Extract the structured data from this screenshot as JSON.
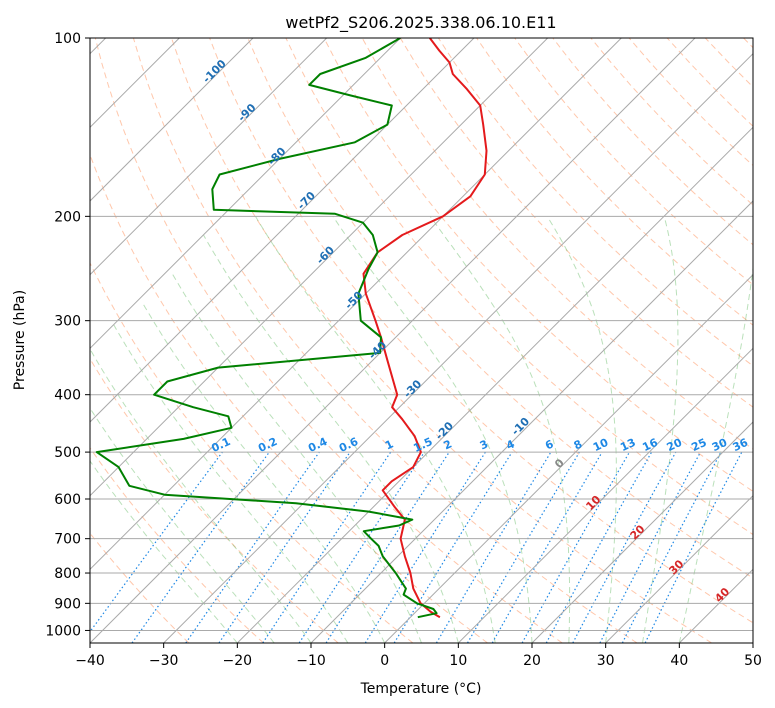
{
  "chart_data": {
    "type": "line",
    "title": "wetPf2_S206.2025.338.06.10.E11",
    "xlabel": "Temperature (°C)",
    "ylabel": "Pressure (hPa)",
    "xlim": [
      -40,
      50
    ],
    "ylim": [
      1050,
      100
    ],
    "y_log_scale": true,
    "skew_deg_per_axis_fraction": 45,
    "grid": true,
    "x_ticks": [
      "−40",
      "−30",
      "−20",
      "−10",
      "0",
      "10",
      "20",
      "30",
      "40",
      "50"
    ],
    "y_ticks": [
      "1000",
      "900",
      "800",
      "700",
      "600",
      "500",
      "400",
      "300",
      "200",
      "100"
    ],
    "series": [
      {
        "color": "#e41a1c",
        "style": "temperature",
        "points": [
          {
            "p": 950,
            "t": 4
          },
          {
            "p": 930,
            "t": 2
          },
          {
            "p": 900,
            "t": -0.5
          },
          {
            "p": 850,
            "t": -3.5
          },
          {
            "p": 800,
            "t": -6
          },
          {
            "p": 750,
            "t": -9
          },
          {
            "p": 700,
            "t": -12
          },
          {
            "p": 650,
            "t": -14
          },
          {
            "p": 620,
            "t": -17
          },
          {
            "p": 580,
            "t": -21
          },
          {
            "p": 560,
            "t": -21
          },
          {
            "p": 530,
            "t": -20
          },
          {
            "p": 500,
            "t": -21
          },
          {
            "p": 470,
            "t": -24
          },
          {
            "p": 440,
            "t": -28
          },
          {
            "p": 420,
            "t": -31
          },
          {
            "p": 400,
            "t": -32
          },
          {
            "p": 350,
            "t": -38
          },
          {
            "p": 320,
            "t": -42
          },
          {
            "p": 300,
            "t": -45
          },
          {
            "p": 270,
            "t": -50
          },
          {
            "p": 250,
            "t": -53
          },
          {
            "p": 230,
            "t": -54
          },
          {
            "p": 215,
            "t": -53
          },
          {
            "p": 200,
            "t": -50
          },
          {
            "p": 185,
            "t": -49
          },
          {
            "p": 170,
            "t": -50
          },
          {
            "p": 155,
            "t": -53
          },
          {
            "p": 140,
            "t": -57
          },
          {
            "p": 130,
            "t": -60
          },
          {
            "p": 122,
            "t": -64
          },
          {
            "p": 115,
            "t": -68
          },
          {
            "p": 110,
            "t": -70
          },
          {
            "p": 105,
            "t": -73
          },
          {
            "p": 100,
            "t": -76
          }
        ]
      },
      {
        "color": "#008000",
        "style": "dewpoint",
        "points": [
          {
            "p": 950,
            "t": 1
          },
          {
            "p": 935,
            "t": 3
          },
          {
            "p": 920,
            "t": 2
          },
          {
            "p": 900,
            "t": -1
          },
          {
            "p": 870,
            "t": -4
          },
          {
            "p": 850,
            "t": -4.5
          },
          {
            "p": 800,
            "t": -8
          },
          {
            "p": 750,
            "t": -12
          },
          {
            "p": 720,
            "t": -14
          },
          {
            "p": 700,
            "t": -16
          },
          {
            "p": 680,
            "t": -18
          },
          {
            "p": 665,
            "t": -14
          },
          {
            "p": 650,
            "t": -13
          },
          {
            "p": 630,
            "t": -20
          },
          {
            "p": 610,
            "t": -31
          },
          {
            "p": 590,
            "t": -50
          },
          {
            "p": 570,
            "t": -56
          },
          {
            "p": 530,
            "t": -60
          },
          {
            "p": 500,
            "t": -65
          },
          {
            "p": 475,
            "t": -55
          },
          {
            "p": 455,
            "t": -50
          },
          {
            "p": 435,
            "t": -52
          },
          {
            "p": 420,
            "t": -58
          },
          {
            "p": 400,
            "t": -65
          },
          {
            "p": 380,
            "t": -65
          },
          {
            "p": 360,
            "t": -60
          },
          {
            "p": 340,
            "t": -40
          },
          {
            "p": 320,
            "t": -42
          },
          {
            "p": 300,
            "t": -47
          },
          {
            "p": 270,
            "t": -51
          },
          {
            "p": 245,
            "t": -53
          },
          {
            "p": 230,
            "t": -54
          },
          {
            "p": 215,
            "t": -57
          },
          {
            "p": 205,
            "t": -60
          },
          {
            "p": 198,
            "t": -65
          },
          {
            "p": 195,
            "t": -82
          },
          {
            "p": 180,
            "t": -85
          },
          {
            "p": 170,
            "t": -86
          },
          {
            "p": 160,
            "t": -80
          },
          {
            "p": 150,
            "t": -72
          },
          {
            "p": 140,
            "t": -70
          },
          {
            "p": 130,
            "t": -72
          },
          {
            "p": 125,
            "t": -79
          },
          {
            "p": 120,
            "t": -86
          },
          {
            "p": 115,
            "t": -86
          },
          {
            "p": 108,
            "t": -82
          },
          {
            "p": 100,
            "t": -80
          }
        ]
      }
    ],
    "isotherm_labels": [
      {
        "text": "-100",
        "t": -100
      },
      {
        "text": "-90",
        "t": -90
      },
      {
        "text": "-80",
        "t": -80
      },
      {
        "text": "-70",
        "t": -70
      },
      {
        "text": "-60",
        "t": -60
      },
      {
        "text": "-50",
        "t": -50
      },
      {
        "text": "-40",
        "t": -40
      },
      {
        "text": "-30",
        "t": -30
      },
      {
        "text": "-20",
        "t": -20
      },
      {
        "text": "-10",
        "t": -10
      },
      {
        "text": "0",
        "t": 0
      },
      {
        "text": "10",
        "t": 10
      },
      {
        "text": "20",
        "t": 20
      },
      {
        "text": "30",
        "t": 30
      },
      {
        "text": "40",
        "t": 40
      }
    ],
    "mixing_ratio_labels": [
      "0.1",
      "0.2",
      "0.4",
      "0.6",
      "1",
      "1.5",
      "2",
      "3",
      "4",
      "6",
      "8",
      "10",
      "13",
      "16",
      "20",
      "25",
      "30",
      "36"
    ],
    "mixing_ratio_label_pressure": 500,
    "colors": {
      "temperature": "#e41a1c",
      "dewpoint": "#008000",
      "isotherm_grid": "#aaaaaa",
      "dry_adiabat": "#ff9966",
      "moist_adiabat": "#66bb66",
      "mixing_ratio": "#1e88e5",
      "dendritic": "#d2b48c",
      "label_cold": "#1f6fb4",
      "label_zero": "#888888",
      "label_warm": "#d62728"
    }
  }
}
